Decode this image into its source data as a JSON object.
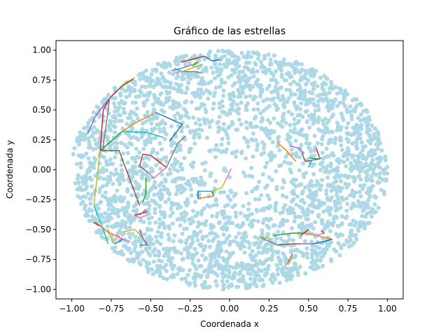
{
  "chart_data": {
    "type": "scatter",
    "title": "Gráfico de las estrellas",
    "xlabel": "Coordenada x",
    "ylabel": "Coordenada y",
    "xlim": [
      -1.1,
      1.1
    ],
    "ylim": [
      -1.08,
      1.08
    ],
    "xticks": [
      -1.0,
      -0.75,
      -0.5,
      -0.25,
      0.0,
      0.25,
      0.5,
      0.75,
      1.0
    ],
    "yticks": [
      -1.0,
      -0.75,
      -0.5,
      -0.25,
      0.0,
      0.25,
      0.5,
      0.75,
      1.0
    ],
    "xtick_labels": [
      "−1.00",
      "−0.75",
      "−0.50",
      "−0.25",
      "0.00",
      "0.25",
      "0.50",
      "0.75",
      "1.00"
    ],
    "ytick_labels": [
      "−1.00",
      "−0.75",
      "−0.50",
      "−0.25",
      "0.00",
      "0.25",
      "0.50",
      "0.75",
      "1.00"
    ],
    "grid": false,
    "stars": {
      "color": "#add8e6",
      "approx_count": 3000,
      "distribution": "unit disk, denser near the rim"
    },
    "palette": [
      "#1f77b4",
      "#ff7f0e",
      "#2ca02c",
      "#d62728",
      "#9467bd",
      "#8c564b",
      "#e377c2",
      "#7f7f7f",
      "#bcbd22",
      "#17becf"
    ],
    "constellations": [
      {
        "color": "#1f77b4",
        "points": [
          [
            -0.47,
            0.48
          ],
          [
            -0.3,
            0.38
          ],
          [
            -0.38,
            0.24
          ]
        ]
      },
      {
        "color": "#ff7f0e",
        "points": [
          [
            -0.48,
            0.47
          ],
          [
            -0.6,
            0.39
          ],
          [
            -0.68,
            0.32
          ]
        ]
      },
      {
        "color": "#17becf",
        "points": [
          [
            -0.68,
            0.32
          ],
          [
            -0.52,
            0.31
          ],
          [
            -0.42,
            0.27
          ]
        ]
      },
      {
        "color": "#2ca02c",
        "points": [
          [
            -0.68,
            0.32
          ],
          [
            -0.75,
            0.24
          ],
          [
            -0.82,
            0.16
          ]
        ]
      },
      {
        "color": "#8c564b",
        "points": [
          [
            -0.82,
            0.16
          ],
          [
            -0.7,
            0.16
          ],
          [
            -0.57,
            -0.3
          ]
        ]
      },
      {
        "color": "#bcbd22",
        "points": [
          [
            -0.82,
            0.16
          ],
          [
            -0.86,
            -0.3
          ]
        ]
      },
      {
        "color": "#17becf",
        "points": [
          [
            -0.86,
            -0.3
          ],
          [
            -0.8,
            -0.5
          ],
          [
            -0.77,
            -0.62
          ]
        ]
      },
      {
        "color": "#d62728",
        "points": [
          [
            -0.82,
            0.16
          ],
          [
            -0.8,
            0.5
          ],
          [
            -0.76,
            0.6
          ]
        ]
      },
      {
        "color": "#7f7f7f",
        "points": [
          [
            -0.76,
            0.6
          ],
          [
            -0.8,
            0.2
          ],
          [
            -0.8,
            0.15
          ]
        ]
      },
      {
        "color": "#9467bd",
        "points": [
          [
            -0.76,
            0.6
          ],
          [
            -0.85,
            0.45
          ],
          [
            -0.9,
            0.3
          ]
        ]
      },
      {
        "color": "#bcbd22",
        "points": [
          [
            -0.76,
            0.6
          ],
          [
            -0.67,
            0.72
          ],
          [
            -0.6,
            0.77
          ]
        ]
      },
      {
        "color": "#e377c2",
        "points": [
          [
            -0.76,
            0.6
          ],
          [
            -0.72,
            0.66
          ]
        ]
      },
      {
        "color": "#8c564b",
        "points": [
          [
            -0.76,
            0.6
          ],
          [
            -0.68,
            0.7
          ],
          [
            -0.61,
            0.76
          ]
        ]
      },
      {
        "color": "#7f7f7f",
        "points": [
          [
            -0.4,
            0.02
          ],
          [
            -0.33,
            0.22
          ],
          [
            -0.28,
            0.28
          ]
        ]
      },
      {
        "color": "#d62728",
        "points": [
          [
            -0.4,
            0.02
          ],
          [
            -0.5,
            0.12
          ],
          [
            -0.55,
            0.13
          ]
        ]
      },
      {
        "color": "#e377c2",
        "points": [
          [
            -0.4,
            0.02
          ],
          [
            -0.48,
            -0.07
          ],
          [
            -0.52,
            -0.02
          ]
        ]
      },
      {
        "color": "#8c564b",
        "points": [
          [
            -0.52,
            -0.02
          ],
          [
            -0.57,
            0.03
          ],
          [
            -0.55,
            0.13
          ]
        ]
      },
      {
        "color": "#2ca02c",
        "points": [
          [
            -0.53,
            -0.07
          ],
          [
            -0.53,
            -0.2
          ],
          [
            -0.55,
            -0.27
          ]
        ]
      },
      {
        "color": "#e377c2",
        "points": [
          [
            -0.52,
            -0.38
          ],
          [
            -0.57,
            -0.4
          ],
          [
            -0.6,
            -0.38
          ]
        ]
      },
      {
        "color": "#d62728",
        "points": [
          [
            -0.6,
            -0.38
          ],
          [
            -0.52,
            -0.35
          ]
        ]
      },
      {
        "color": "#9467bd",
        "points": [
          [
            -0.57,
            -0.38
          ],
          [
            -0.53,
            -0.33
          ]
        ]
      },
      {
        "color": "#bcbd22",
        "points": [
          [
            -0.68,
            -0.52
          ],
          [
            -0.6,
            -0.5
          ],
          [
            -0.55,
            -0.57
          ]
        ]
      },
      {
        "color": "#7f7f7f",
        "points": [
          [
            -0.55,
            -0.57
          ],
          [
            -0.52,
            -0.63
          ],
          [
            -0.57,
            -0.63
          ]
        ]
      },
      {
        "color": "#9467bd",
        "points": [
          [
            -0.57,
            -0.5
          ],
          [
            -0.55,
            -0.57
          ],
          [
            -0.53,
            -0.62
          ]
        ]
      },
      {
        "color": "#ff7f0e",
        "points": [
          [
            -0.85,
            -0.44
          ],
          [
            -0.77,
            -0.52
          ],
          [
            -0.68,
            -0.58
          ]
        ]
      },
      {
        "color": "#e377c2",
        "points": [
          [
            -0.72,
            -0.54
          ],
          [
            -0.68,
            -0.58
          ],
          [
            -0.63,
            -0.6
          ]
        ]
      },
      {
        "color": "#1f77b4",
        "points": [
          [
            -0.68,
            -0.58
          ],
          [
            -0.7,
            -0.6
          ],
          [
            -0.73,
            -0.62
          ]
        ]
      },
      {
        "color": "#bcbd22",
        "points": [
          [
            -0.77,
            -0.52
          ],
          [
            -0.73,
            -0.62
          ]
        ]
      },
      {
        "color": "#d62728",
        "points": [
          [
            -0.86,
            -0.44
          ],
          [
            -0.82,
            -0.47
          ]
        ]
      },
      {
        "color": "#d62728",
        "points": [
          [
            -0.31,
            0.9
          ],
          [
            -0.22,
            0.93
          ],
          [
            -0.16,
            0.95
          ]
        ]
      },
      {
        "color": "#1f77b4",
        "points": [
          [
            -0.16,
            0.95
          ],
          [
            -0.11,
            0.91
          ],
          [
            -0.06,
            0.92
          ]
        ]
      },
      {
        "color": "#9467bd",
        "points": [
          [
            -0.37,
            0.83
          ],
          [
            -0.3,
            0.85
          ],
          [
            -0.24,
            0.88
          ]
        ]
      },
      {
        "color": "#bcbd22",
        "points": [
          [
            -0.3,
            0.82
          ],
          [
            -0.22,
            0.86
          ],
          [
            -0.17,
            0.88
          ]
        ]
      },
      {
        "color": "#2ca02c",
        "points": [
          [
            -0.24,
            0.87
          ],
          [
            -0.2,
            0.9
          ]
        ]
      },
      {
        "color": "#7f7f7f",
        "points": [
          [
            -0.29,
            0.82
          ],
          [
            -0.22,
            0.82
          ],
          [
            -0.18,
            0.81
          ]
        ]
      },
      {
        "color": "#17becf",
        "points": [
          [
            -0.3,
            0.82
          ],
          [
            -0.35,
            0.85
          ]
        ]
      },
      {
        "color": "#e377c2",
        "points": [
          [
            -0.32,
            0.82
          ],
          [
            -0.34,
            0.8
          ]
        ]
      },
      {
        "color": "#17becf",
        "points": [
          [
            -0.2,
            -0.18
          ],
          [
            -0.15,
            -0.18
          ],
          [
            -0.11,
            -0.18
          ]
        ]
      },
      {
        "color": "#2ca02c",
        "points": [
          [
            -0.11,
            -0.18
          ],
          [
            -0.1,
            -0.22
          ]
        ]
      },
      {
        "color": "#ff7f0e",
        "points": [
          [
            -0.2,
            -0.24
          ],
          [
            -0.15,
            -0.23
          ],
          [
            -0.1,
            -0.22
          ]
        ]
      },
      {
        "color": "#1f77b4",
        "points": [
          [
            -0.2,
            -0.18
          ],
          [
            -0.2,
            -0.24
          ]
        ]
      },
      {
        "color": "#bcbd22",
        "points": [
          [
            -0.11,
            -0.18
          ],
          [
            -0.05,
            -0.15
          ],
          [
            -0.03,
            -0.1
          ]
        ]
      },
      {
        "color": "#e377c2",
        "points": [
          [
            -0.03,
            -0.1
          ],
          [
            0.0,
            -0.02
          ],
          [
            0.01,
            0.01
          ]
        ]
      },
      {
        "color": "#ff7f0e",
        "points": [
          [
            0.3,
            0.23
          ],
          [
            0.36,
            0.16
          ],
          [
            0.42,
            0.07
          ]
        ]
      },
      {
        "color": "#9467bd",
        "points": [
          [
            0.38,
            0.2
          ],
          [
            0.44,
            0.18
          ],
          [
            0.47,
            0.13
          ]
        ]
      },
      {
        "color": "#8c564b",
        "points": [
          [
            0.46,
            0.13
          ],
          [
            0.48,
            0.07
          ],
          [
            0.52,
            0.08
          ]
        ]
      },
      {
        "color": "#d62728",
        "points": [
          [
            0.55,
            0.18
          ],
          [
            0.57,
            0.1
          ]
        ]
      },
      {
        "color": "#2ca02c",
        "points": [
          [
            0.5,
            0.1
          ],
          [
            0.57,
            0.09
          ]
        ]
      },
      {
        "color": "#1f77b4",
        "points": [
          [
            0.52,
            0.08
          ],
          [
            0.57,
            0.09
          ],
          [
            0.58,
            0.1
          ]
        ]
      },
      {
        "color": "#17becf",
        "points": [
          [
            0.52,
            0.08
          ],
          [
            0.5,
            0.02
          ]
        ]
      },
      {
        "color": "#7f7f7f",
        "points": [
          [
            0.2,
            -0.57
          ],
          [
            0.27,
            -0.61
          ],
          [
            0.3,
            -0.63
          ]
        ]
      },
      {
        "color": "#bcbd22",
        "points": [
          [
            0.19,
            -0.56
          ],
          [
            0.26,
            -0.58
          ]
        ]
      },
      {
        "color": "#8c564b",
        "points": [
          [
            0.3,
            -0.63
          ],
          [
            0.4,
            -0.62
          ],
          [
            0.45,
            -0.62
          ]
        ]
      },
      {
        "color": "#2ca02c",
        "points": [
          [
            0.28,
            -0.55
          ],
          [
            0.4,
            -0.53
          ],
          [
            0.48,
            -0.53
          ]
        ]
      },
      {
        "color": "#ff7f0e",
        "points": [
          [
            0.48,
            -0.53
          ],
          [
            0.58,
            -0.56
          ],
          [
            0.65,
            -0.58
          ]
        ]
      },
      {
        "color": "#1f77b4",
        "points": [
          [
            0.53,
            -0.62
          ],
          [
            0.6,
            -0.6
          ],
          [
            0.65,
            -0.58
          ]
        ]
      },
      {
        "color": "#9467bd",
        "points": [
          [
            0.45,
            -0.62
          ],
          [
            0.53,
            -0.62
          ]
        ]
      },
      {
        "color": "#e377c2",
        "points": [
          [
            0.55,
            -0.55
          ],
          [
            0.6,
            -0.53
          ]
        ]
      },
      {
        "color": "#d62728",
        "points": [
          [
            0.45,
            -0.55
          ],
          [
            0.5,
            -0.5
          ]
        ]
      },
      {
        "color": "#d62728",
        "points": [
          [
            0.6,
            -0.53
          ],
          [
            0.58,
            -0.51
          ]
        ]
      },
      {
        "color": "#ff7f0e",
        "points": [
          [
            0.35,
            -0.8
          ],
          [
            0.38,
            -0.77
          ],
          [
            0.4,
            -0.73
          ]
        ]
      },
      {
        "color": "#7f7f7f",
        "points": [
          [
            0.37,
            -0.77
          ],
          [
            0.4,
            -0.7
          ]
        ]
      }
    ]
  }
}
